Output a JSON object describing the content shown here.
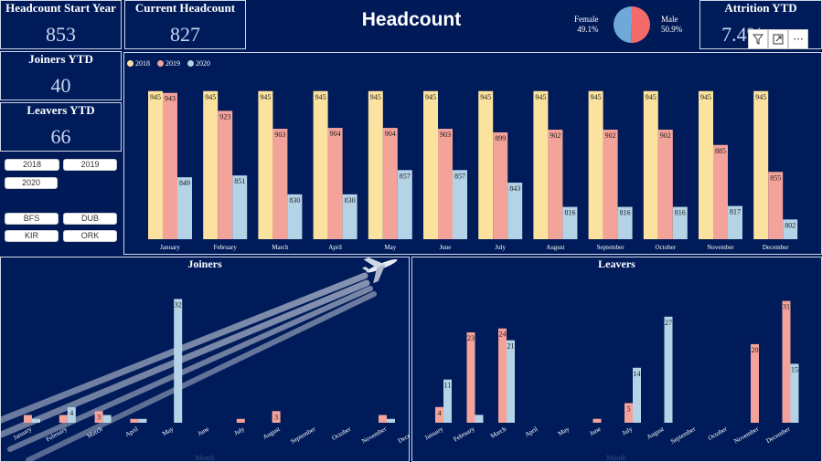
{
  "kpis": {
    "start_year": {
      "title": "Headcount Start Year",
      "value": "853"
    },
    "current": {
      "title": "Current Headcount",
      "value": "827"
    },
    "joiners": {
      "title": "Joiners YTD",
      "value": "40"
    },
    "leavers": {
      "title": "Leavers YTD",
      "value": "66"
    },
    "attrition": {
      "title": "Attrition YTD",
      "value": "7.4%"
    }
  },
  "header": {
    "title": "Headcount"
  },
  "gender_pie": {
    "female_label": "Female",
    "female_pct": "49.1%",
    "male_label": "Male",
    "male_pct": "50.9%",
    "female_value": 49.1,
    "male_value": 50.9,
    "female_color": "#6ea9d8",
    "male_color": "#f36a6a"
  },
  "slicers": {
    "years": [
      "2018",
      "2019",
      "2020"
    ],
    "sites": [
      "BFS",
      "DUB",
      "KIR",
      "ORK"
    ]
  },
  "toolbar": {
    "filter_icon": "filter-icon",
    "focus_icon": "focus-mode-icon",
    "more_label": "···"
  },
  "colors": {
    "y2018": "#fbe29f",
    "y2019": "#f4a39b",
    "y2020": "#b5d3e7"
  },
  "chart_data": [
    {
      "type": "bar",
      "title": "",
      "categories": [
        "January",
        "February",
        "March",
        "April",
        "May",
        "June",
        "July",
        "August",
        "September",
        "October",
        "November",
        "December"
      ],
      "series": [
        {
          "name": "2018",
          "values": [
            945,
            945,
            945,
            945,
            945,
            945,
            945,
            945,
            945,
            945,
            945,
            945
          ]
        },
        {
          "name": "2019",
          "values": [
            943,
            923,
            903,
            904,
            904,
            903,
            899,
            902,
            902,
            902,
            885,
            855
          ]
        },
        {
          "name": "2020",
          "values": [
            849,
            851,
            830,
            830,
            857,
            857,
            843,
            816,
            816,
            816,
            817,
            802
          ]
        }
      ],
      "ylim": [
        780,
        960
      ],
      "legend": "top-left",
      "grid": false
    },
    {
      "type": "bar",
      "title": "Joiners",
      "categories": [
        "January",
        "February",
        "March",
        "April",
        "May",
        "June",
        "July",
        "August",
        "September",
        "October",
        "November",
        "December"
      ],
      "series": [
        {
          "name": "2019",
          "values": [
            2,
            2,
            3,
            1,
            0,
            0,
            1,
            3,
            0,
            0,
            2,
            0
          ]
        },
        {
          "name": "2020",
          "values": [
            1,
            4,
            2,
            1,
            32,
            0,
            0,
            0,
            0,
            0,
            1,
            0
          ]
        }
      ],
      "labels": {
        "2019": [
          null,
          null,
          "3",
          null,
          null,
          null,
          null,
          "3",
          null,
          null,
          null,
          null
        ],
        "2020": [
          null,
          "4",
          null,
          null,
          "32",
          null,
          null,
          null,
          null,
          null,
          null,
          null
        ]
      },
      "ylim": [
        0,
        34
      ],
      "xlabel": "Month"
    },
    {
      "type": "bar",
      "title": "Leavers",
      "categories": [
        "January",
        "February",
        "March",
        "April",
        "May",
        "June",
        "July",
        "August",
        "September",
        "October",
        "November",
        "December"
      ],
      "series": [
        {
          "name": "2019",
          "values": [
            4,
            23,
            24,
            0,
            0,
            1,
            5,
            0,
            0,
            0,
            20,
            31
          ]
        },
        {
          "name": "2020",
          "values": [
            11,
            2,
            21,
            0,
            0,
            0,
            14,
            27,
            0,
            0,
            0,
            15
          ]
        }
      ],
      "labels": {
        "2019": [
          "4",
          "23",
          "24",
          null,
          null,
          null,
          "5",
          null,
          null,
          null,
          "20",
          "31"
        ],
        "2020": [
          "11",
          null,
          "21",
          null,
          null,
          null,
          "14",
          "27",
          null,
          null,
          null,
          "15"
        ]
      },
      "ylim": [
        0,
        33
      ],
      "xlabel": "Month"
    }
  ]
}
